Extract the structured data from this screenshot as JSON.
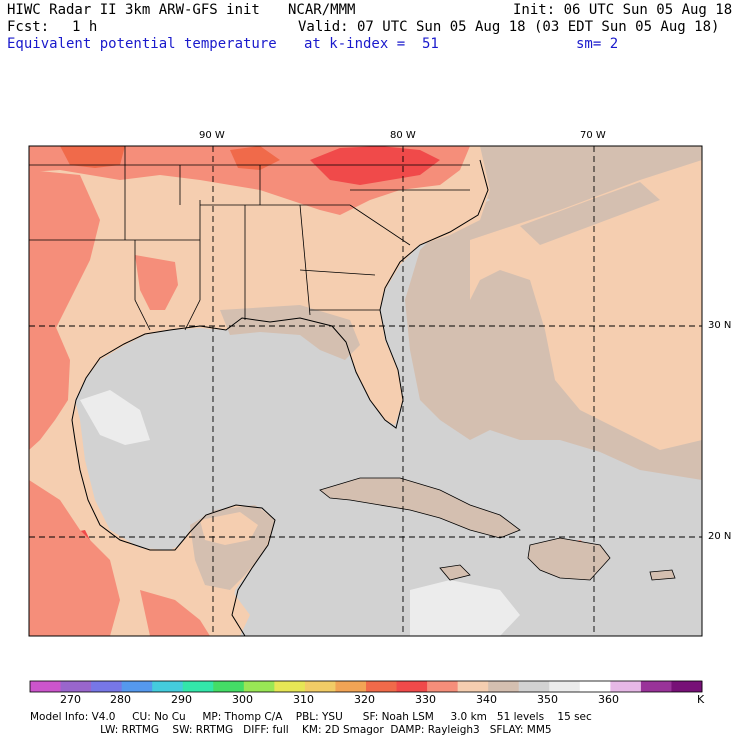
{
  "header": {
    "title": "HIWC Radar II 3km ARW-GFS init",
    "org": "NCAR/MMM",
    "init": "Init: 06 UTC Sun 05 Aug 18",
    "fcst_label": "Fcst:",
    "fcst_value": "1 h",
    "valid": "Valid: 07 UTC Sun 05 Aug 18 (03 EDT Sun 05 Aug 18)",
    "field": "Equivalent potential temperature",
    "level": "at k-index =  51",
    "smooth": "sm= 2"
  },
  "axes": {
    "lon_labels": [
      "90 W",
      "80 W",
      "70 W"
    ],
    "lat_labels": [
      "30 N",
      "20 N"
    ]
  },
  "colorbar": {
    "colors": [
      "#cc55cc",
      "#9966cc",
      "#7777e6",
      "#5599ee",
      "#44ccdd",
      "#33e6aa",
      "#44dd66",
      "#99e655",
      "#e6e655",
      "#f2cc66",
      "#f2a455",
      "#f06a4a",
      "#f04a4a",
      "#f58e7a",
      "#f5ceb0",
      "#d4bfb0",
      "#d2d2d2",
      "#ececec",
      "#ffffff",
      "#e6b8e6",
      "#993399",
      "#771177"
    ],
    "labels": [
      "270",
      "280",
      "290",
      "300",
      "310",
      "320",
      "330",
      "340",
      "350",
      "360",
      "K"
    ]
  },
  "footer": {
    "line1": "Model Info: V4.0     CU: No Cu     MP: Thomp C/A    PBL: YSU      SF: Noah LSM     3.0 km   51 levels    15 sec",
    "line2": "                     LW: RRTMG    SW: RRTMG   DIFF: full    KM: 2D Smagor  DAMP: Rayleigh3   SFLAY: MM5"
  }
}
